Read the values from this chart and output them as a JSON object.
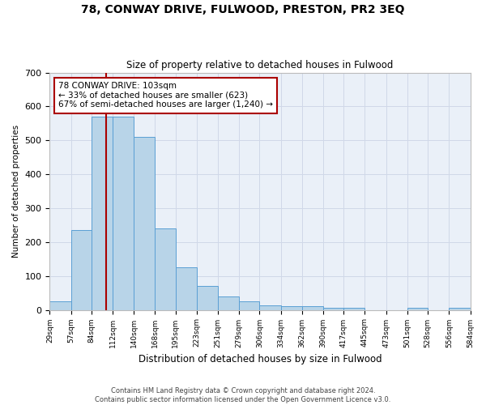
{
  "title": "78, CONWAY DRIVE, FULWOOD, PRESTON, PR2 3EQ",
  "subtitle": "Size of property relative to detached houses in Fulwood",
  "xlabel": "Distribution of detached houses by size in Fulwood",
  "ylabel": "Number of detached properties",
  "footer_line1": "Contains HM Land Registry data © Crown copyright and database right 2024.",
  "footer_line2": "Contains public sector information licensed under the Open Government Licence v3.0.",
  "annotation_line1": "78 CONWAY DRIVE: 103sqm",
  "annotation_line2": "← 33% of detached houses are smaller (623)",
  "annotation_line3": "67% of semi-detached houses are larger (1,240) →",
  "property_size": 103,
  "bar_edges": [
    29,
    57,
    84,
    112,
    140,
    168,
    195,
    223,
    251,
    279,
    306,
    334,
    362,
    390,
    417,
    445,
    473,
    501,
    528,
    556,
    584
  ],
  "bar_values": [
    25,
    235,
    570,
    570,
    510,
    240,
    125,
    70,
    40,
    25,
    13,
    10,
    10,
    5,
    5,
    0,
    0,
    5,
    0,
    5
  ],
  "bar_color": "#b8d4e8",
  "bar_edge_color": "#5a9fd4",
  "vline_color": "#aa0000",
  "vline_x": 103,
  "annotation_box_color": "#ffffff",
  "annotation_box_edge": "#aa0000",
  "grid_color": "#d0d8e8",
  "bg_color": "#eaf0f8",
  "ylim": [
    0,
    700
  ],
  "yticks": [
    0,
    100,
    200,
    300,
    400,
    500,
    600,
    700
  ]
}
